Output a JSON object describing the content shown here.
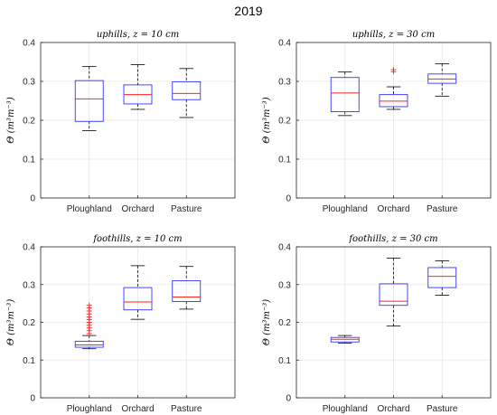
{
  "figure": {
    "suptitle": "2019"
  },
  "chart_data": [
    {
      "type": "box",
      "title": "uphills, z = 10 cm",
      "ylabel": "Θ (m³m⁻³)",
      "ylim": [
        0,
        0.4
      ],
      "yticks": [
        "0",
        "0.1",
        "0.2",
        "0.3",
        "0.4"
      ],
      "grid": true,
      "categories": [
        "Ploughland",
        "Orchard",
        "Pasture"
      ],
      "boxes": [
        {
          "min": 0.173,
          "q1": 0.197,
          "median": 0.255,
          "q3": 0.302,
          "max": 0.338,
          "outliers": []
        },
        {
          "min": 0.228,
          "q1": 0.242,
          "median": 0.266,
          "q3": 0.291,
          "max": 0.343,
          "outliers": []
        },
        {
          "min": 0.207,
          "q1": 0.253,
          "median": 0.269,
          "q3": 0.299,
          "max": 0.333,
          "outliers": []
        }
      ]
    },
    {
      "type": "box",
      "title": "uphills, z = 30 cm",
      "ylabel": "Θ (m³m⁻³)",
      "ylim": [
        0,
        0.4
      ],
      "yticks": [
        "0",
        "0.1",
        "0.2",
        "0.3",
        "0.4"
      ],
      "grid": true,
      "categories": [
        "Ploughland",
        "Orchard",
        "Pasture"
      ],
      "boxes": [
        {
          "min": 0.212,
          "q1": 0.222,
          "median": 0.27,
          "q3": 0.31,
          "max": 0.324,
          "outliers": []
        },
        {
          "min": 0.228,
          "q1": 0.235,
          "median": 0.249,
          "q3": 0.266,
          "max": 0.286,
          "outliers": [
            0.325,
            0.33
          ]
        },
        {
          "min": 0.262,
          "q1": 0.295,
          "median": 0.306,
          "q3": 0.319,
          "max": 0.345,
          "outliers": []
        }
      ]
    },
    {
      "type": "box",
      "title": "foothills, z = 10 cm",
      "ylabel": "Θ (m³m⁻³)",
      "ylim": [
        0,
        0.4
      ],
      "yticks": [
        "0",
        "0.1",
        "0.2",
        "0.3",
        "0.4"
      ],
      "grid": true,
      "categories": [
        "Ploughland",
        "Orchard",
        "Pasture"
      ],
      "boxes": [
        {
          "min": 0.13,
          "q1": 0.134,
          "median": 0.14,
          "q3": 0.15,
          "max": 0.165,
          "outliers": [
            0.17,
            0.178,
            0.185,
            0.192,
            0.2,
            0.207,
            0.214,
            0.222,
            0.23,
            0.238,
            0.245
          ]
        },
        {
          "min": 0.208,
          "q1": 0.233,
          "median": 0.254,
          "q3": 0.292,
          "max": 0.35,
          "outliers": []
        },
        {
          "min": 0.235,
          "q1": 0.255,
          "median": 0.267,
          "q3": 0.31,
          "max": 0.348,
          "outliers": []
        }
      ]
    },
    {
      "type": "box",
      "title": "foothills, z = 30 cm",
      "ylabel": "Θ (m³m⁻³)",
      "ylim": [
        0,
        0.4
      ],
      "yticks": [
        "0",
        "0.1",
        "0.2",
        "0.3",
        "0.4"
      ],
      "grid": true,
      "categories": [
        "Ploughland",
        "Orchard",
        "Pasture"
      ],
      "boxes": [
        {
          "min": 0.145,
          "q1": 0.148,
          "median": 0.155,
          "q3": 0.16,
          "max": 0.165,
          "outliers": []
        },
        {
          "min": 0.19,
          "q1": 0.245,
          "median": 0.256,
          "q3": 0.302,
          "max": 0.37,
          "outliers": []
        },
        {
          "min": 0.272,
          "q1": 0.292,
          "median": 0.322,
          "q3": 0.345,
          "max": 0.363,
          "outliers": []
        }
      ]
    }
  ]
}
